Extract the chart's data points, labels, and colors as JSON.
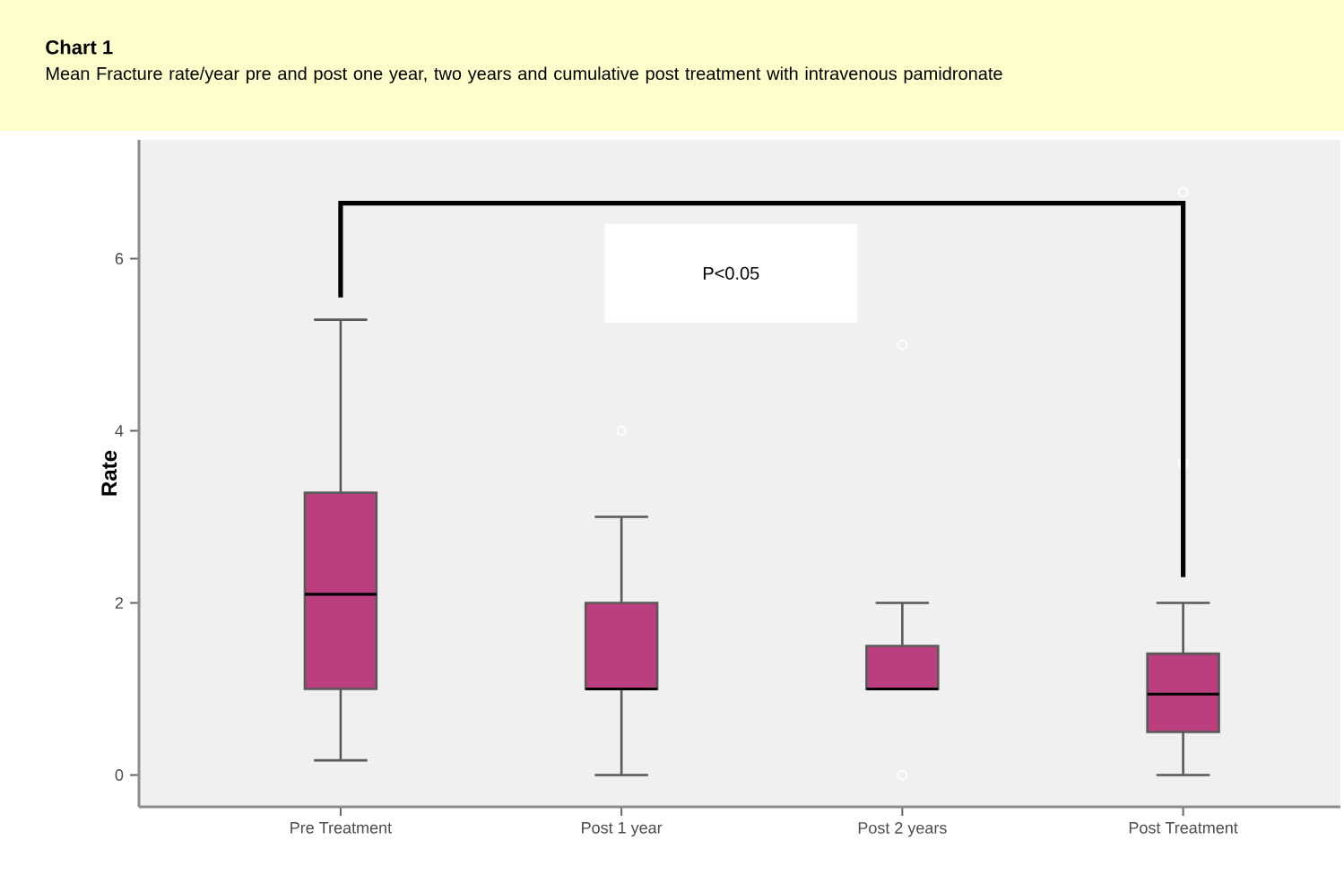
{
  "chart_data": {
    "type": "box",
    "title": "Chart 1",
    "subtitle": "Mean Fracture rate/year pre and post one year, two years and cumulative  post treatment with  intravenous  pamidronate",
    "ylabel": "Rate",
    "categories": [
      "Pre Treatment",
      "Post 1 year",
      "Post 2 years",
      "Post Treatment"
    ],
    "color": "#bb3f7e",
    "boxes": [
      {
        "low": 0.17,
        "q1": 1.0,
        "median": 2.1,
        "q3": 3.28,
        "high": 5.29
      },
      {
        "low": 0,
        "q1": 1.0,
        "median": 1.0,
        "q3": 2.0,
        "high": 3.0,
        "outliers": [
          4.0
        ]
      },
      {
        "low": 1.0,
        "q1": 1.0,
        "median": 1.0,
        "q3": 1.5,
        "high": 2.0,
        "outliers": [
          0,
          5.0
        ]
      },
      {
        "low": 0,
        "q1": 0.5,
        "median": 0.94,
        "q3": 1.41,
        "high": 2.0,
        "outliers": [
          3.62,
          6.77
        ]
      }
    ],
    "ylim": [
      -0.37,
      7.38
    ],
    "yticks": [
      0,
      2,
      4,
      6
    ],
    "grid": false,
    "annotations": [
      "P<0.05"
    ]
  }
}
